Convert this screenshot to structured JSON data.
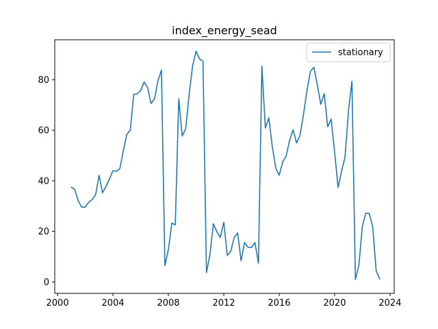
{
  "chart_data": {
    "type": "line",
    "title": "index_energy_sead",
    "xlabel": "",
    "ylabel": "",
    "xlim": [
      1999.8,
      2024.3
    ],
    "ylim": [
      -4.5,
      95.8
    ],
    "xticks": [
      2000,
      2004,
      2008,
      2012,
      2016,
      2020,
      2024
    ],
    "yticks": [
      0,
      20,
      40,
      60,
      80
    ],
    "legend_position": "top-right",
    "grid": false,
    "series": [
      {
        "name": "stationary",
        "color": "#1f77b4",
        "x": [
          2001.0,
          2001.25,
          2001.5,
          2001.75,
          2002.0,
          2002.25,
          2002.5,
          2002.75,
          2003.0,
          2003.25,
          2003.5,
          2003.75,
          2004.0,
          2004.25,
          2004.5,
          2004.75,
          2005.0,
          2005.25,
          2005.5,
          2005.75,
          2006.0,
          2006.25,
          2006.5,
          2006.75,
          2007.0,
          2007.25,
          2007.5,
          2007.75,
          2008.0,
          2008.25,
          2008.5,
          2008.75,
          2009.0,
          2009.25,
          2009.5,
          2009.75,
          2010.0,
          2010.25,
          2010.5,
          2010.75,
          2011.0,
          2011.25,
          2011.5,
          2011.75,
          2012.0,
          2012.25,
          2012.5,
          2012.75,
          2013.0,
          2013.25,
          2013.5,
          2013.75,
          2014.0,
          2014.25,
          2014.5,
          2014.75,
          2015.0,
          2015.25,
          2015.5,
          2015.75,
          2016.0,
          2016.25,
          2016.5,
          2016.75,
          2017.0,
          2017.25,
          2017.5,
          2017.75,
          2018.0,
          2018.25,
          2018.5,
          2018.75,
          2019.0,
          2019.25,
          2019.5,
          2019.75,
          2020.0,
          2020.25,
          2020.5,
          2020.75,
          2021.0,
          2021.25,
          2021.5,
          2021.75,
          2022.0,
          2022.25,
          2022.5,
          2022.75,
          2023.0,
          2023.25
        ],
        "values": [
          37.5,
          36.5,
          32.0,
          29.6,
          29.6,
          31.5,
          32.6,
          34.5,
          42.2,
          35.3,
          37.8,
          40.8,
          44.0,
          43.8,
          44.8,
          52.0,
          58.4,
          60.0,
          74.2,
          74.4,
          75.7,
          79.1,
          76.9,
          70.6,
          72.4,
          79.6,
          83.8,
          6.5,
          12.8,
          23.3,
          22.6,
          72.5,
          57.7,
          60.6,
          74.2,
          85.5,
          91.3,
          88.2,
          87.3,
          3.7,
          10.9,
          23.0,
          19.9,
          17.6,
          23.6,
          10.5,
          12.1,
          17.6,
          19.4,
          8.4,
          15.6,
          13.7,
          13.7,
          15.6,
          7.4,
          85.4,
          60.9,
          64.9,
          53.6,
          45.1,
          42.2,
          47.5,
          49.8,
          56.0,
          60.2,
          55.0,
          57.9,
          66.2,
          75.6,
          83.3,
          84.9,
          78.0,
          70.3,
          74.5,
          61.4,
          64.4,
          51.3,
          37.4,
          43.8,
          49.4,
          67.7,
          79.4,
          1.0,
          6.6,
          22.0,
          27.2,
          27.1,
          21.7,
          4.4,
          1.2
        ]
      }
    ]
  }
}
